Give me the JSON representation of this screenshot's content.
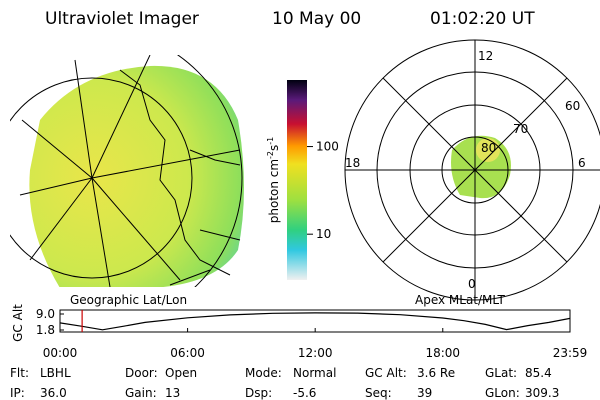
{
  "header": {
    "title": "Ultraviolet Imager",
    "date": "10 May 00",
    "time": "01:02:20 UT"
  },
  "left_panel": {
    "label": "Geographic Lat/Lon"
  },
  "colorbar": {
    "label": [
      "photon cm",
      "-2",
      "s",
      "-1"
    ],
    "scale": "log",
    "clim": [
      3,
      575
    ],
    "ticks": [
      10,
      100
    ]
  },
  "right_panel": {
    "label": "Apex MLat/MLT",
    "mlt_labels": [
      "12",
      "18",
      "6",
      "0"
    ],
    "lat_labels": [
      "60",
      "70",
      "80"
    ]
  },
  "altitude_plot": {
    "type": "line",
    "y_label": "GC Alt",
    "x": [
      0,
      1,
      2,
      3,
      4,
      6,
      8,
      10,
      12,
      14,
      16,
      18,
      19,
      20,
      21,
      22,
      23,
      23.983
    ],
    "values": [
      5.0,
      3.5,
      1.9,
      3.5,
      5.2,
      7.3,
      8.6,
      9.3,
      9.5,
      9.4,
      8.7,
      7.2,
      6.0,
      4.3,
      2.0,
      3.8,
      5.2,
      7.0
    ],
    "color": "#000000",
    "marker_x": 1.04,
    "marker_color": "#cc0000",
    "xlim": [
      0,
      23.983
    ],
    "ylim": [
      0.9,
      10.8
    ],
    "xticks": [
      {
        "value": 0,
        "label": "00:00"
      },
      {
        "value": 6,
        "label": "06:00"
      },
      {
        "value": 12,
        "label": "12:00"
      },
      {
        "value": 18,
        "label": "18:00"
      },
      {
        "value": 23.983,
        "label": "23:59"
      }
    ],
    "yticks": [
      1.8,
      {
        "value": 9,
        "label": "9.0"
      }
    ]
  },
  "footer": [
    [
      {
        "label": "Flt:",
        "value": "LBHL"
      },
      {
        "label": "Door:",
        "value": "Open"
      },
      {
        "label": "Mode:",
        "value": "Normal"
      },
      {
        "label": "GC Alt:",
        "value": "3.6 Re"
      },
      {
        "label": "GLat:",
        "value": "85.4"
      }
    ],
    [
      {
        "label": "IP:",
        "value": "36.0"
      },
      {
        "label": "Gain:",
        "value": "13"
      },
      {
        "label": "Dsp:",
        "value": "-5.6"
      },
      {
        "label": "Seq:",
        "value": "39"
      },
      {
        "label": "GLon:",
        "value": "309.3"
      }
    ]
  ]
}
